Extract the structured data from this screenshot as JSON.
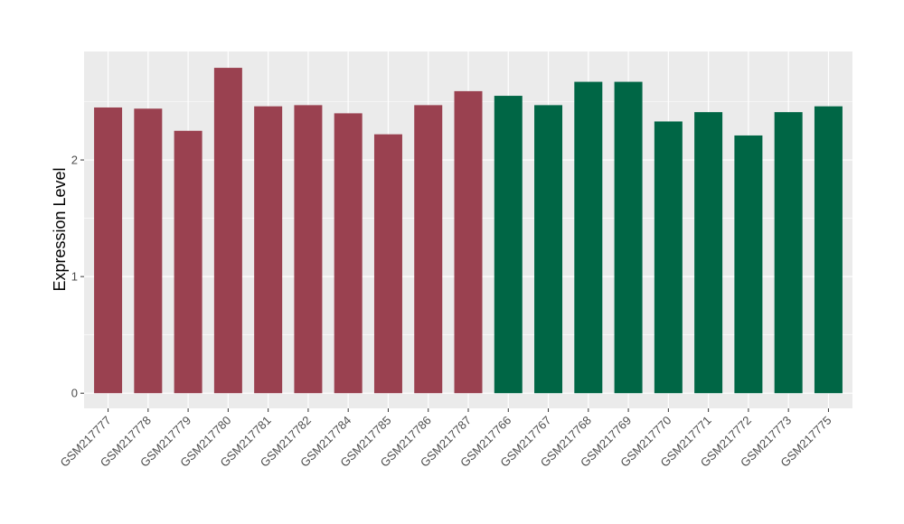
{
  "chart_data": {
    "type": "bar",
    "title": "",
    "xlabel": "",
    "ylabel": "Expression Level",
    "ylim": [
      -0.13,
      2.93
    ],
    "yticks": [
      0,
      1,
      2
    ],
    "ytick_labels": [
      "0",
      "1",
      "2"
    ],
    "grid": true,
    "legend": "none",
    "categories": [
      "GSM217777",
      "GSM217778",
      "GSM217779",
      "GSM217780",
      "GSM217781",
      "GSM217782",
      "GSM217784",
      "GSM217785",
      "GSM217786",
      "GSM217787",
      "GSM217766",
      "GSM217767",
      "GSM217768",
      "GSM217769",
      "GSM217770",
      "GSM217771",
      "GSM217772",
      "GSM217773",
      "GSM217775"
    ],
    "values": [
      2.45,
      2.44,
      2.25,
      2.79,
      2.46,
      2.47,
      2.4,
      2.22,
      2.47,
      2.59,
      2.55,
      2.47,
      2.67,
      2.67,
      2.33,
      2.41,
      2.21,
      2.41,
      2.46
    ],
    "bar_colors": [
      "#9a4150",
      "#9a4150",
      "#9a4150",
      "#9a4150",
      "#9a4150",
      "#9a4150",
      "#9a4150",
      "#9a4150",
      "#9a4150",
      "#9a4150",
      "#006645",
      "#006645",
      "#006645",
      "#006645",
      "#006645",
      "#006645",
      "#006645",
      "#006645",
      "#006645"
    ],
    "panel_background": "#ebebeb",
    "gridline_color": "#ffffff"
  }
}
